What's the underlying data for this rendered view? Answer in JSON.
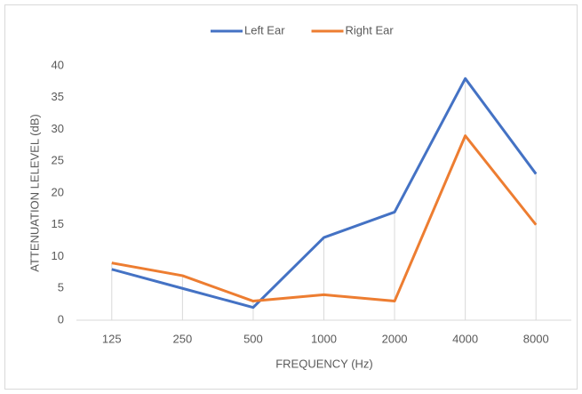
{
  "chart_data": {
    "type": "line",
    "categories": [
      "125",
      "250",
      "500",
      "1000",
      "2000",
      "4000",
      "8000"
    ],
    "series": [
      {
        "name": "Left Ear",
        "color": "#4472c4",
        "values": [
          8,
          5,
          2,
          13,
          17,
          38,
          23
        ]
      },
      {
        "name": "Right Ear",
        "color": "#ed7d31",
        "values": [
          9,
          7,
          3,
          4,
          3,
          29,
          15
        ]
      }
    ],
    "xlabel": "FREQUENCY (Hz)",
    "ylabel": "ATTENUATION LELEVEL (dB)",
    "ylim": [
      0,
      40
    ],
    "yticks": [
      0,
      5,
      10,
      15,
      20,
      25,
      30,
      35,
      40
    ],
    "drop_lines": true,
    "legend": "top"
  }
}
